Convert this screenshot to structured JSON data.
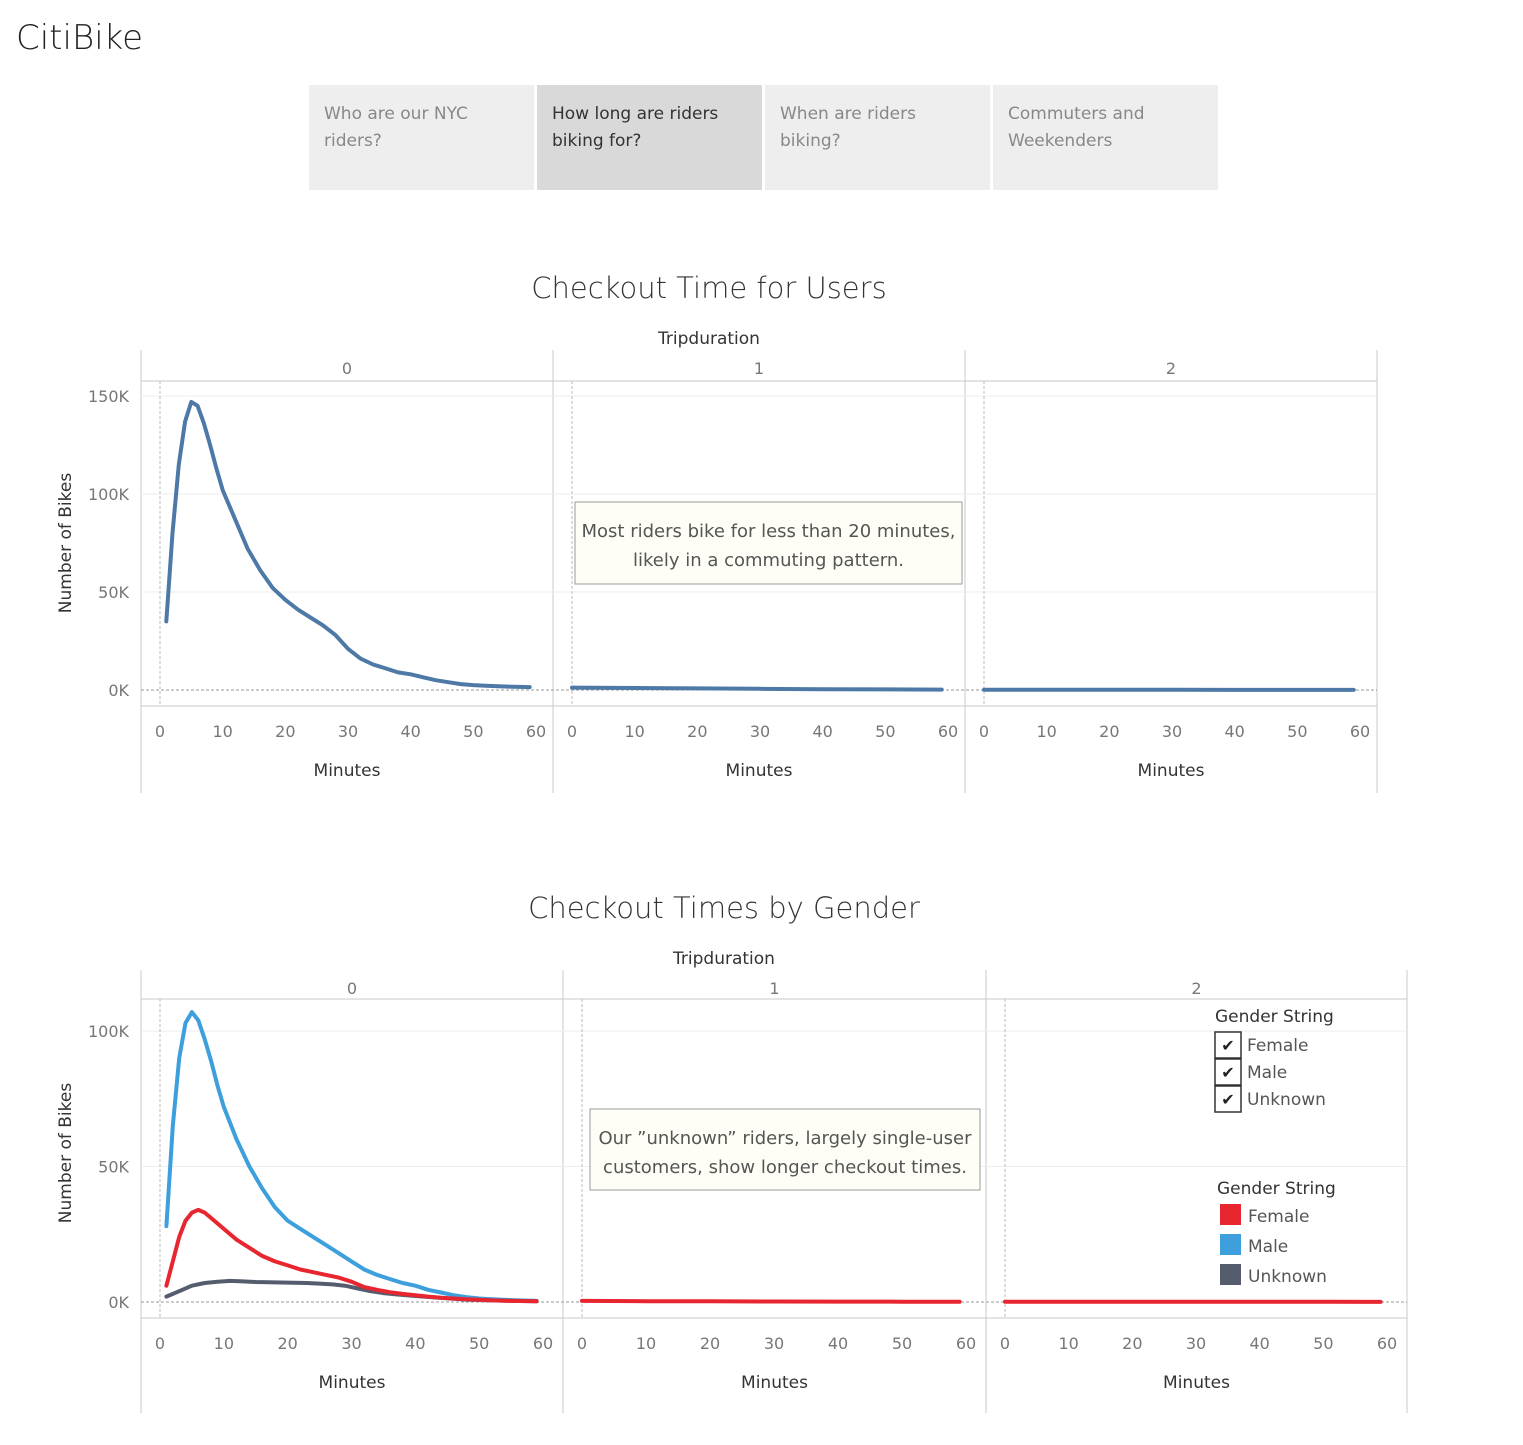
{
  "app": {
    "title": "CitiBike"
  },
  "story_tabs": [
    {
      "label_lines": [
        "Who are our NYC",
        "riders?"
      ],
      "active": false
    },
    {
      "label_lines": [
        "How long are riders",
        "biking for?"
      ],
      "active": true
    },
    {
      "label_lines": [
        "When are riders",
        "biking?"
      ],
      "active": false
    },
    {
      "label_lines": [
        "Commuters and",
        "Weekenders"
      ],
      "active": false
    }
  ],
  "chart_data": [
    {
      "type": "line",
      "title": "Checkout Time for Users",
      "column_header": "Tripduration",
      "panels": [
        "0",
        "1",
        "2"
      ],
      "xlabel": "Minutes",
      "ylabel": "Number of Bikes",
      "xlim": [
        0,
        60
      ],
      "ylim": [
        0,
        150000
      ],
      "x_ticks": [
        0,
        10,
        20,
        30,
        40,
        50,
        60
      ],
      "y_ticks": [
        0,
        50000,
        100000,
        150000
      ],
      "y_tick_labels": [
        "0K",
        "50K",
        "100K",
        "150K"
      ],
      "color": "#4e79a7",
      "series": [
        {
          "panel": "0",
          "x": [
            1,
            2,
            3,
            4,
            5,
            6,
            7,
            8,
            9,
            10,
            12,
            14,
            16,
            18,
            20,
            22,
            24,
            26,
            28,
            30,
            32,
            34,
            36,
            38,
            40,
            42,
            44,
            46,
            48,
            50,
            52,
            55,
            59
          ],
          "y": [
            35000,
            80000,
            115000,
            137000,
            147000,
            145000,
            136000,
            125000,
            113000,
            102000,
            87000,
            72000,
            61000,
            52000,
            46000,
            41000,
            37000,
            33000,
            28000,
            21000,
            16000,
            13000,
            11000,
            9000,
            8000,
            6500,
            5000,
            4000,
            3000,
            2500,
            2200,
            1800,
            1500
          ]
        },
        {
          "panel": "1",
          "x": [
            0,
            10,
            20,
            30,
            40,
            50,
            59
          ],
          "y": [
            1200,
            1000,
            800,
            600,
            400,
            300,
            200
          ]
        },
        {
          "panel": "2",
          "x": [
            0,
            10,
            20,
            30,
            40,
            50,
            59
          ],
          "y": [
            150,
            120,
            100,
            80,
            60,
            50,
            40
          ]
        }
      ],
      "annotation": {
        "panel": "1",
        "lines": [
          "Most riders bike for less than 20 minutes,",
          "likely in a commuting pattern."
        ]
      }
    },
    {
      "type": "line",
      "title": "Checkout Times by Gender",
      "column_header": "Tripduration",
      "panels": [
        "0",
        "1",
        "2"
      ],
      "xlabel": "Minutes",
      "ylabel": "Number of Bikes",
      "xlim": [
        0,
        60
      ],
      "ylim": [
        0,
        110000
      ],
      "x_ticks": [
        0,
        10,
        20,
        30,
        40,
        50,
        60
      ],
      "y_ticks": [
        0,
        50000,
        100000
      ],
      "y_tick_labels": [
        "0K",
        "50K",
        "100K"
      ],
      "series": [
        {
          "name": "Male",
          "color": "#3d9fdc",
          "panel": "0",
          "x": [
            1,
            2,
            3,
            4,
            5,
            6,
            7,
            8,
            9,
            10,
            12,
            14,
            16,
            18,
            20,
            22,
            24,
            26,
            28,
            30,
            32,
            34,
            36,
            38,
            40,
            42,
            44,
            46,
            48,
            50,
            52,
            55,
            59
          ],
          "y": [
            28000,
            65000,
            90000,
            103000,
            107000,
            104000,
            97000,
            89000,
            80000,
            72000,
            60000,
            50000,
            42000,
            35000,
            30000,
            27000,
            24000,
            21000,
            18000,
            15000,
            12000,
            10000,
            8500,
            7000,
            6000,
            4500,
            3500,
            2500,
            1800,
            1300,
            1000,
            700,
            400
          ]
        },
        {
          "name": "Unknown",
          "color": "#555c6e",
          "panel": "0",
          "x": [
            1,
            3,
            5,
            7,
            9,
            11,
            13,
            15,
            17,
            19,
            21,
            23,
            25,
            27,
            29,
            31,
            33,
            35,
            37,
            40,
            44,
            48,
            52,
            59
          ],
          "y": [
            2000,
            4000,
            6000,
            7000,
            7500,
            7800,
            7600,
            7400,
            7300,
            7200,
            7100,
            7000,
            6800,
            6500,
            6000,
            5000,
            4000,
            3300,
            2800,
            2200,
            1500,
            900,
            600,
            300
          ]
        },
        {
          "name": "Female",
          "color": "#e8262f",
          "panel": "0",
          "x": [
            1,
            2,
            3,
            4,
            5,
            6,
            7,
            8,
            9,
            10,
            12,
            14,
            16,
            18,
            20,
            22,
            24,
            26,
            28,
            30,
            32,
            34,
            36,
            38,
            40,
            42,
            44,
            46,
            48,
            50,
            52,
            55,
            59
          ],
          "y": [
            6000,
            15000,
            24000,
            30000,
            33000,
            34000,
            33000,
            31000,
            29000,
            27000,
            23000,
            20000,
            17000,
            15000,
            13500,
            12000,
            11000,
            10000,
            9000,
            7500,
            5500,
            4500,
            3600,
            3000,
            2500,
            2000,
            1600,
            1300,
            1000,
            800,
            600,
            400,
            250
          ]
        },
        {
          "name": "Female",
          "color": "#e8262f",
          "panel": "1",
          "x": [
            0,
            10,
            20,
            30,
            40,
            50,
            59
          ],
          "y": [
            400,
            300,
            250,
            200,
            150,
            120,
            100
          ]
        },
        {
          "name": "Female",
          "color": "#e8262f",
          "panel": "2",
          "x": [
            0,
            10,
            20,
            30,
            40,
            50,
            59
          ],
          "y": [
            120,
            100,
            90,
            80,
            70,
            60,
            50
          ]
        }
      ],
      "annotation": {
        "panel": "1",
        "lines": [
          "Our ”unknown” riders, largely single-user",
          "customers, show longer checkout times."
        ]
      },
      "filter_legend": {
        "title": "Gender String",
        "items": [
          "Female",
          "Male",
          "Unknown"
        ]
      },
      "color_legend": {
        "title": "Gender String",
        "items": [
          {
            "label": "Female",
            "color": "#e8262f"
          },
          {
            "label": "Male",
            "color": "#3d9fdc"
          },
          {
            "label": "Unknown",
            "color": "#555c6e"
          }
        ]
      }
    }
  ]
}
